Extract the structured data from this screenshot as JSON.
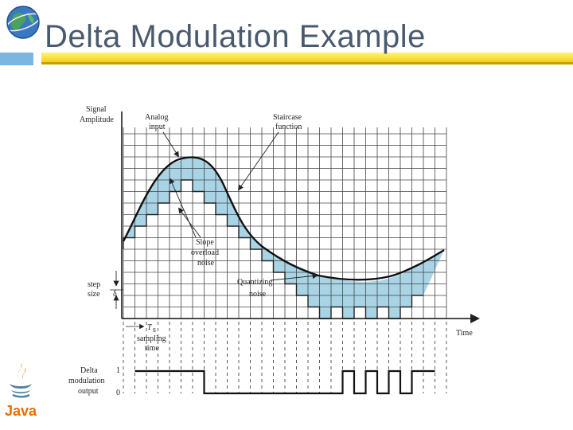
{
  "slide": {
    "title": "Delta Modulation Example"
  },
  "logos": {
    "top_left": "globe-icon",
    "bottom_left": "java-logo",
    "java_text": "Java"
  },
  "diagram": {
    "y_axis_label_line1": "Signal",
    "y_axis_label_line2": "Amplitude",
    "x_axis_label": "Time",
    "analog_label_line1": "Analog",
    "analog_label_line2": "input",
    "staircase_label_line1": "Staircase",
    "staircase_label_line2": "function",
    "slope_label_line1": "Slope",
    "slope_label_line2": "overload",
    "slope_label_line3": "noise",
    "quant_label_line1": "Quantizing",
    "quant_label_line2": "noise",
    "step_label_line1": "step",
    "step_label_line2": "size",
    "delta_symbol": "δ",
    "ts_symbol": "T",
    "ts_subscript": "s",
    "sampling_line1": "sampling",
    "sampling_line2": "time",
    "output_label_line1": "Delta",
    "output_label_line2": "modulation",
    "output_label_line3": "output",
    "output_high": "1",
    "output_low": "0",
    "bits": [
      1,
      1,
      1,
      1,
      1,
      1,
      0,
      0,
      0,
      0,
      0,
      0,
      0,
      0,
      0,
      0,
      0,
      0,
      1,
      0,
      1,
      0,
      1,
      0,
      1,
      1
    ],
    "colors": {
      "grid": "#333333",
      "fill": "#a9d4e6",
      "curve": "#1a1a1a",
      "title_bar": "#f2cf18",
      "tab": "#7ab6de"
    }
  }
}
